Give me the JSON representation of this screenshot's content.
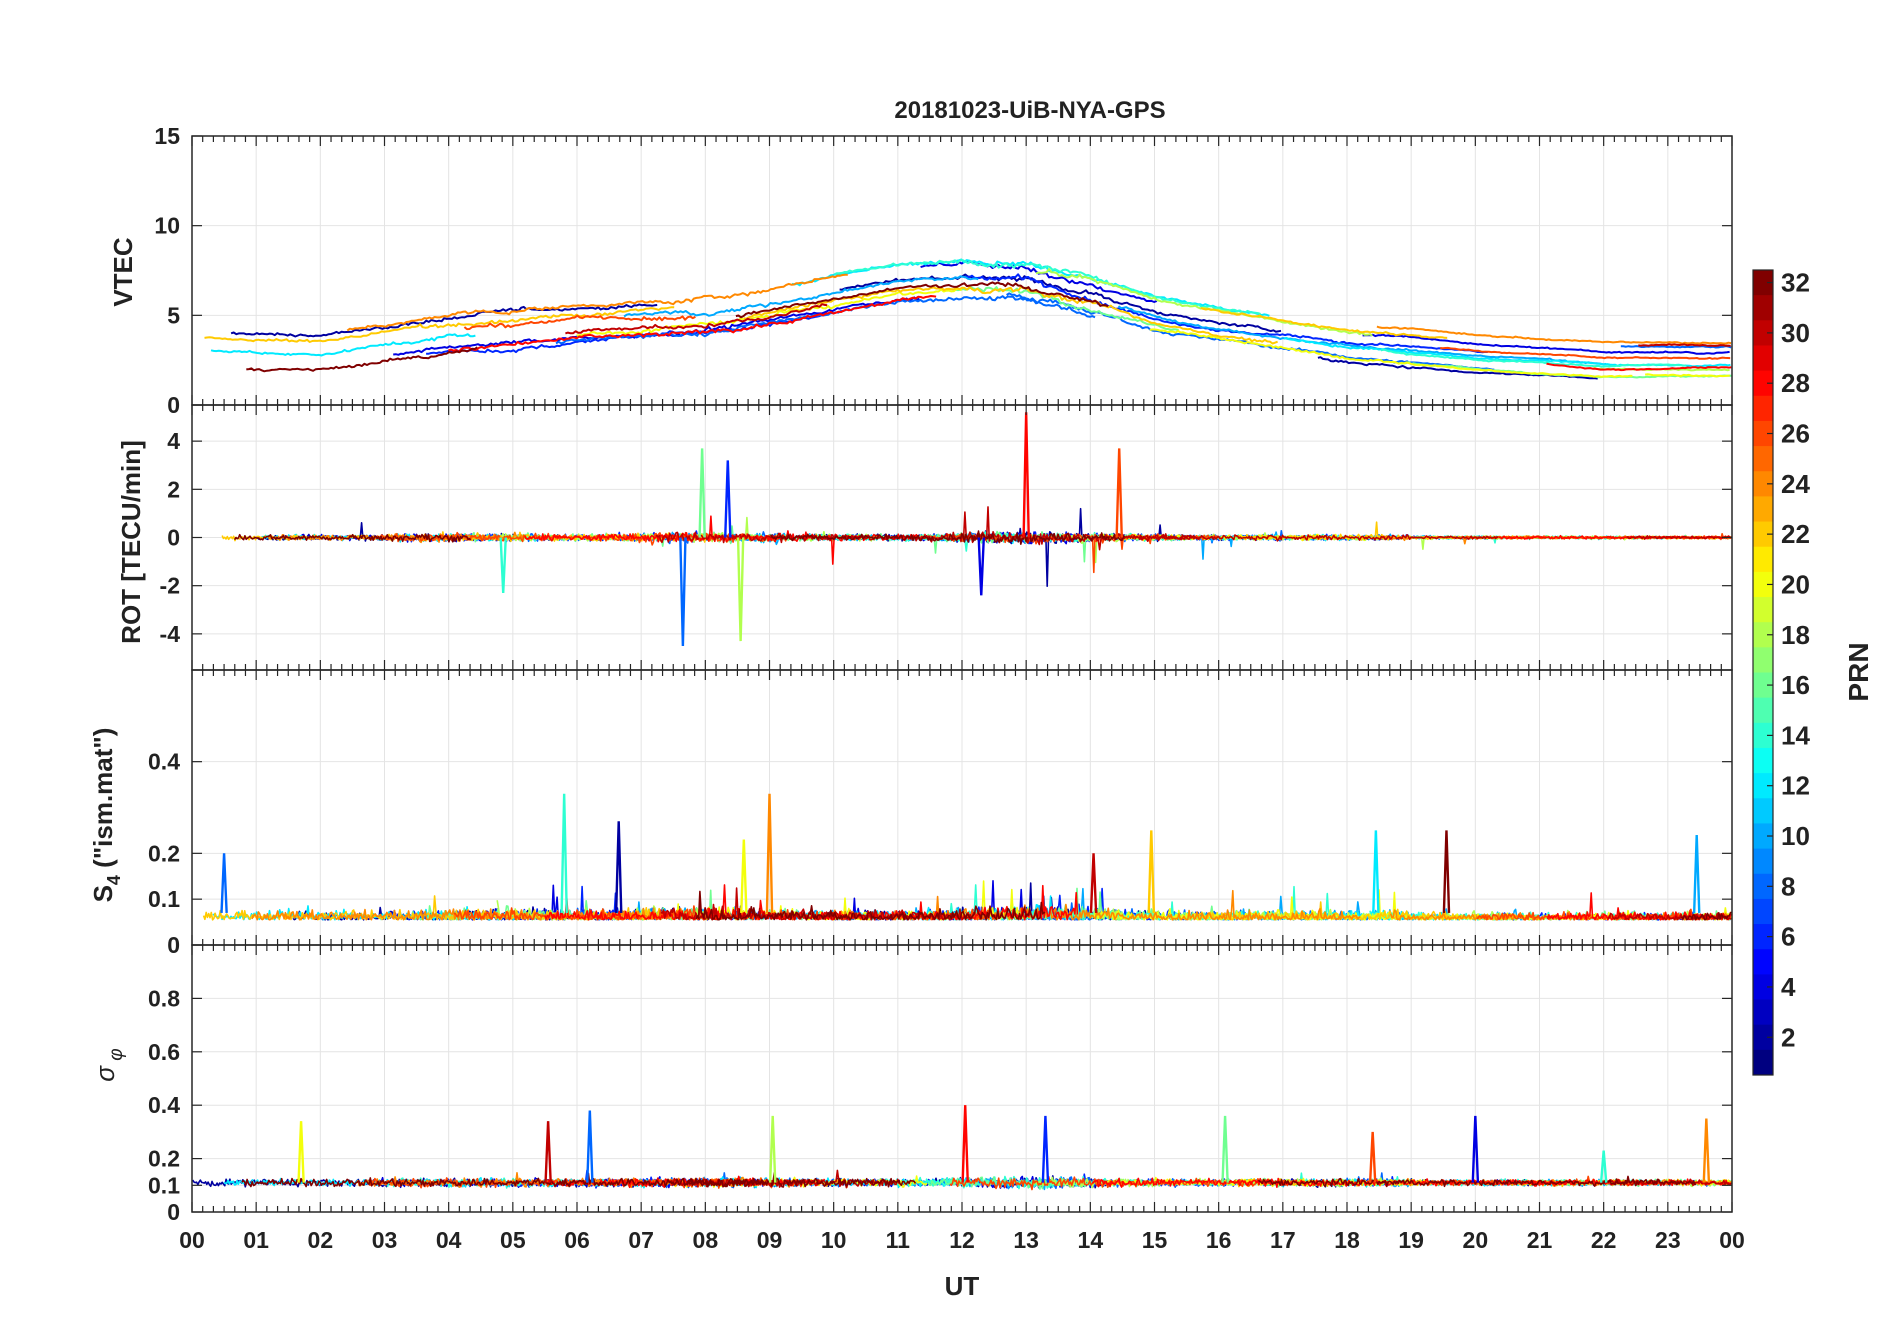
{
  "chart_data": {
    "type": "line",
    "title": "20181023-UiB-NYA-GPS",
    "xlabel": "UT",
    "x_tick_labels": [
      "00",
      "01",
      "02",
      "03",
      "04",
      "05",
      "06",
      "07",
      "08",
      "09",
      "10",
      "11",
      "12",
      "13",
      "14",
      "15",
      "16",
      "17",
      "18",
      "19",
      "20",
      "21",
      "22",
      "23",
      "00"
    ],
    "xlim_hours": [
      0,
      24
    ],
    "grid": true,
    "panels": [
      {
        "id": "vtec",
        "ylabel": "VTEC",
        "ylim": [
          0,
          15
        ],
        "y_ticks": [
          0,
          5,
          10,
          15
        ],
        "y_tick_labels": [
          "0",
          "5",
          "10",
          "15"
        ],
        "profile_hours": [
          0,
          2,
          4,
          6,
          8,
          9,
          10,
          11,
          12,
          13,
          14,
          15,
          16,
          18,
          20,
          22,
          24
        ],
        "profile_values": [
          3.2,
          3.0,
          4.0,
          4.6,
          5.0,
          5.5,
          6.2,
          6.8,
          7.0,
          6.8,
          6.0,
          5.0,
          4.4,
          3.4,
          2.8,
          2.4,
          2.4
        ]
      },
      {
        "id": "rot",
        "ylabel": "ROT [TECU/min]",
        "ylim": [
          -5.5,
          5.5
        ],
        "y_ticks": [
          -4,
          -2,
          0,
          2,
          4
        ],
        "y_tick_labels": [
          "-4",
          "-2",
          "0",
          "2",
          "4"
        ],
        "spikes": [
          {
            "t": 7.65,
            "v": -4.5
          },
          {
            "t": 8.55,
            "v": -4.3
          },
          {
            "t": 13.0,
            "v": 5.2
          },
          {
            "t": 8.35,
            "v": 3.2
          },
          {
            "t": 7.95,
            "v": 3.7
          },
          {
            "t": 14.45,
            "v": 3.7
          },
          {
            "t": 12.3,
            "v": -2.4
          },
          {
            "t": 4.85,
            "v": -2.3
          }
        ]
      },
      {
        "id": "s4",
        "ylabel": "S4 (\"ism.mat\")",
        "ylim": [
          0,
          0.6
        ],
        "y_ticks": [
          0,
          0.1,
          0.2,
          0.4
        ],
        "y_tick_labels": [
          "0",
          "0.1",
          "0.2",
          "0.4"
        ],
        "spikes": [
          {
            "t": 5.8,
            "v": 0.33
          },
          {
            "t": 9.0,
            "v": 0.33
          },
          {
            "t": 6.65,
            "v": 0.27
          },
          {
            "t": 18.45,
            "v": 0.25
          },
          {
            "t": 14.95,
            "v": 0.25
          },
          {
            "t": 19.55,
            "v": 0.25
          },
          {
            "t": 23.45,
            "v": 0.24
          },
          {
            "t": 8.6,
            "v": 0.23
          },
          {
            "t": 14.05,
            "v": 0.2
          },
          {
            "t": 0.5,
            "v": 0.2
          }
        ]
      },
      {
        "id": "sigma_phi",
        "ylabel": "σφ",
        "ylim": [
          0,
          1
        ],
        "y_ticks": [
          0,
          0.1,
          0.2,
          0.4,
          0.6,
          0.8
        ],
        "y_tick_labels": [
          "0",
          "0.1",
          "0.2",
          "0.4",
          "0.6",
          "0.8"
        ],
        "spikes": [
          {
            "t": 1.7,
            "v": 0.34
          },
          {
            "t": 5.55,
            "v": 0.34
          },
          {
            "t": 6.2,
            "v": 0.38
          },
          {
            "t": 9.05,
            "v": 0.36
          },
          {
            "t": 12.05,
            "v": 0.4
          },
          {
            "t": 13.3,
            "v": 0.36
          },
          {
            "t": 16.1,
            "v": 0.36
          },
          {
            "t": 18.4,
            "v": 0.3
          },
          {
            "t": 20.0,
            "v": 0.36
          },
          {
            "t": 22.0,
            "v": 0.23
          },
          {
            "t": 23.6,
            "v": 0.35
          }
        ]
      }
    ],
    "colorbar": {
      "label": "PRN",
      "range": [
        1,
        32
      ],
      "tick_labels": [
        "2",
        "4",
        "6",
        "8",
        "10",
        "12",
        "14",
        "16",
        "18",
        "20",
        "22",
        "24",
        "26",
        "28",
        "30",
        "32"
      ],
      "colormap": "jet"
    },
    "series_prn": [
      2,
      4,
      6,
      8,
      10,
      12,
      14,
      16,
      18,
      20,
      22,
      24,
      26,
      28,
      30,
      32
    ]
  }
}
